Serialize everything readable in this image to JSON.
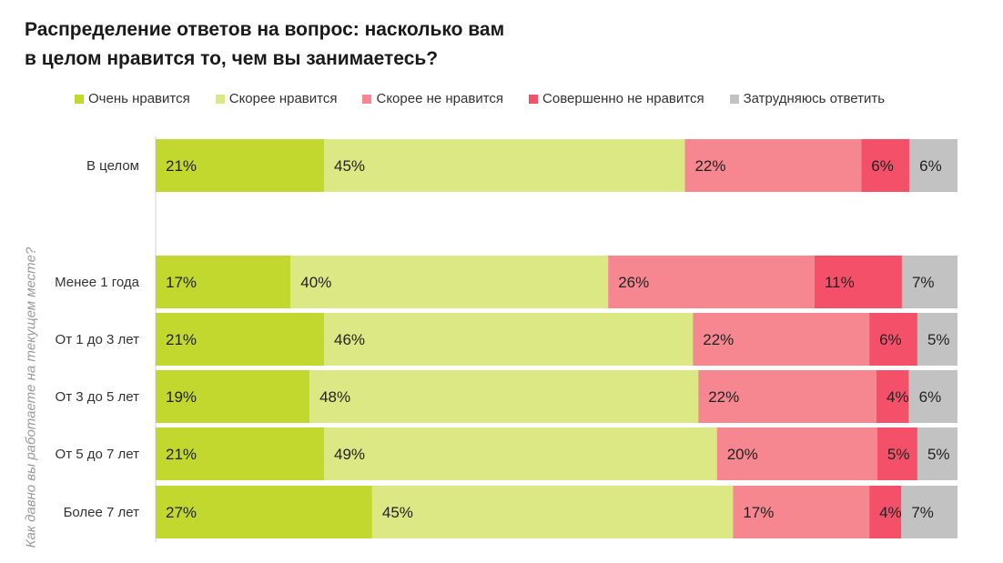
{
  "colors": {
    "very_like": "#c3d82e",
    "rather_like": "#dce883",
    "rather_dislike": "#f6868f",
    "totally_dislike": "#f5506a",
    "hard_to_say": "#c2c2c2"
  },
  "chart_data": {
    "type": "bar",
    "orientation": "horizontal",
    "stacked": true,
    "normalized": true,
    "title": "Распределение ответов на вопрос: насколько вам в целом нравится то, чем вы занимаетесь?",
    "title_lines": [
      "Распределение ответов на вопрос: насколько вам",
      "в целом нравится то, чем вы занимаетесь?"
    ],
    "ylabel": "Как давно вы работаете на текущем месте?",
    "legend_position": "top",
    "categories": [
      "В целом",
      "Менее 1 года",
      "От 1 до 3 лет",
      "От 3 до 5 лет",
      "От 5 до 7 лет",
      "Более 7 лет"
    ],
    "series": [
      {
        "name": "Очень нравится",
        "color_key": "very_like",
        "values": [
          21,
          17,
          21,
          19,
          21,
          27
        ]
      },
      {
        "name": "Скорее нравится",
        "color_key": "rather_like",
        "values": [
          45,
          40,
          46,
          48,
          49,
          45
        ]
      },
      {
        "name": "Скорее не нравится",
        "color_key": "rather_dislike",
        "values": [
          22,
          26,
          22,
          22,
          20,
          17
        ]
      },
      {
        "name": "Совершенно не нравится",
        "color_key": "totally_dislike",
        "values": [
          6,
          11,
          6,
          4,
          5,
          4
        ]
      },
      {
        "name": "Затрудняюсь ответить",
        "color_key": "hard_to_say",
        "values": [
          6,
          7,
          5,
          6,
          5,
          7
        ]
      }
    ],
    "value_suffix": "%"
  }
}
